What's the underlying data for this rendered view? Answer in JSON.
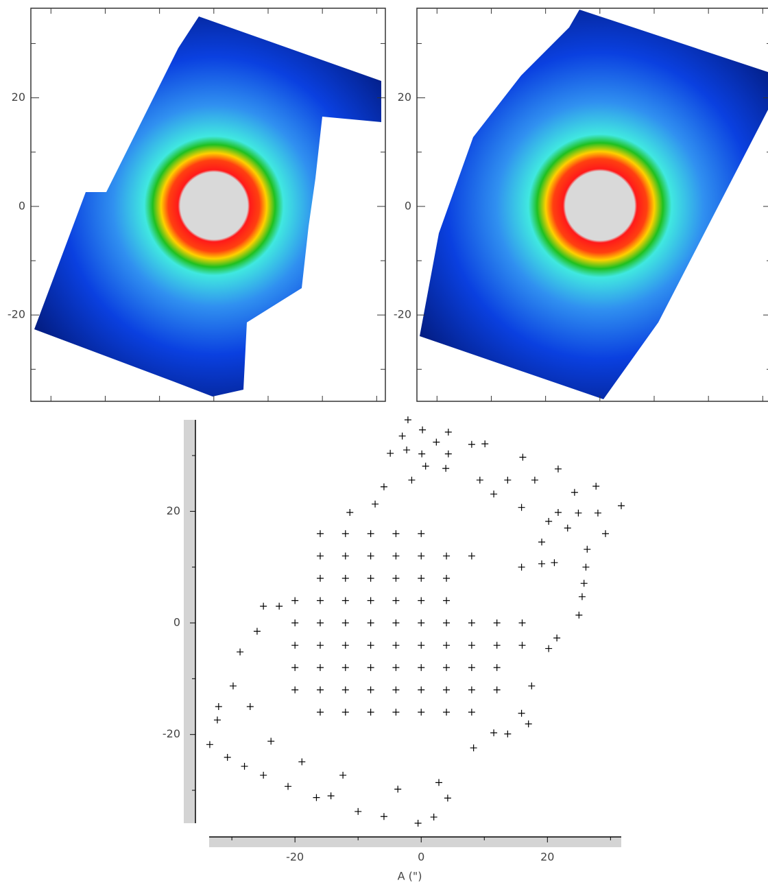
{
  "chart_data": [
    {
      "type": "image",
      "xlim": [
        -33.7,
        31.6
      ],
      "xticks": [
        -30,
        -20,
        -10,
        0,
        10,
        20,
        30
      ],
      "ylim": [
        -35.9,
        36.5
      ],
      "yticks": [
        -20,
        0,
        20
      ],
      "yminorticks": [
        -30,
        -10,
        10,
        30
      ]
    },
    {
      "type": "image",
      "xlim": [
        -33.7,
        31.6
      ],
      "xticks": [
        -30,
        -20,
        -10,
        0,
        10,
        20,
        30
      ],
      "ylim": [
        -35.9,
        36.5
      ],
      "yticks": [
        -20,
        0,
        20
      ],
      "yminorticks": [
        -30,
        -10,
        10,
        30
      ]
    },
    {
      "type": "scatter",
      "xlabel": "A (\")",
      "xlim": [
        -33.6,
        31.7
      ],
      "xticks": [
        -20,
        0,
        20
      ],
      "xminorticks": [
        -30,
        -10,
        10,
        30
      ],
      "ylim": [
        -35.9,
        36.4
      ],
      "yticks": [
        -20,
        0,
        20
      ],
      "yminorticks": [
        -30,
        -10,
        10,
        30
      ],
      "color": "#000000",
      "points": [
        [
          -2.1,
          36.4
        ],
        [
          -3.0,
          33.5
        ],
        [
          0.2,
          34.6
        ],
        [
          2.4,
          32.4
        ],
        [
          4.3,
          34.2
        ],
        [
          -4.9,
          30.4
        ],
        [
          -2.3,
          31.0
        ],
        [
          0.1,
          30.3
        ],
        [
          4.3,
          30.3
        ],
        [
          8.0,
          32.0
        ],
        [
          10.1,
          32.1
        ],
        [
          16.1,
          29.7
        ],
        [
          21.7,
          27.6
        ],
        [
          27.7,
          24.5
        ],
        [
          31.7,
          21.0
        ],
        [
          29.2,
          16.0
        ],
        [
          24.3,
          23.4
        ],
        [
          28.0,
          19.7
        ],
        [
          24.9,
          19.7
        ],
        [
          21.7,
          19.8
        ],
        [
          26.3,
          13.2
        ],
        [
          26.1,
          10.0
        ],
        [
          25.8,
          7.1
        ],
        [
          25.5,
          4.7
        ],
        [
          25.0,
          1.4
        ],
        [
          -33.5,
          -21.8
        ],
        [
          -32.3,
          -17.4
        ],
        [
          -32.1,
          -15.0
        ],
        [
          -30.7,
          -24.1
        ],
        [
          -28.0,
          -25.7
        ],
        [
          -25.0,
          -27.3
        ],
        [
          -25.0,
          3.0
        ],
        [
          -22.5,
          3.0
        ],
        [
          -28.7,
          -5.2
        ],
        [
          -21.1,
          -29.3
        ],
        [
          -16.6,
          -31.3
        ],
        [
          -14.3,
          -31.0
        ],
        [
          -10.0,
          -33.8
        ],
        [
          -5.9,
          -34.7
        ],
        [
          -0.5,
          -35.9
        ],
        [
          2.0,
          -34.8
        ],
        [
          4.2,
          -31.4
        ],
        [
          11.5,
          -19.7
        ],
        [
          13.7,
          -19.9
        ],
        [
          17.0,
          -18.1
        ],
        [
          -11.3,
          19.8
        ],
        [
          -7.3,
          21.3
        ],
        [
          3.9,
          27.7
        ],
        [
          15.9,
          10.0
        ],
        [
          19.1,
          10.6
        ],
        [
          21.1,
          10.8
        ],
        [
          21.5,
          -2.7
        ],
        [
          20.2,
          -4.6
        ],
        [
          17.5,
          -11.3
        ],
        [
          15.9,
          -16.2
        ],
        [
          -26.0,
          -1.5
        ],
        [
          -29.8,
          -11.3
        ],
        [
          -27.1,
          -15.0
        ],
        [
          -23.8,
          -21.2
        ],
        [
          -18.9,
          -24.9
        ],
        [
          -12.4,
          -27.3
        ],
        [
          -3.7,
          -29.8
        ],
        [
          2.8,
          -28.6
        ],
        [
          8.3,
          -22.4
        ],
        [
          9.3,
          25.6
        ],
        [
          13.7,
          25.6
        ],
        [
          18.0,
          25.6
        ],
        [
          11.5,
          23.1
        ],
        [
          15.9,
          20.7
        ],
        [
          20.2,
          18.2
        ],
        [
          19.1,
          14.5
        ],
        [
          23.2,
          17.0
        ],
        [
          -1.5,
          25.6
        ],
        [
          -5.9,
          24.4
        ],
        [
          0.7,
          28.1
        ],
        [
          -16,
          16
        ],
        [
          -12,
          16
        ],
        [
          -8,
          16
        ],
        [
          -4,
          16
        ],
        [
          0,
          16
        ],
        [
          -16,
          12
        ],
        [
          -12,
          12
        ],
        [
          -8,
          12
        ],
        [
          -4,
          12
        ],
        [
          0,
          12
        ],
        [
          4,
          12
        ],
        [
          8,
          12
        ],
        [
          -16,
          8
        ],
        [
          -12,
          8
        ],
        [
          -8,
          8
        ],
        [
          -4,
          8
        ],
        [
          0,
          8
        ],
        [
          4,
          8
        ],
        [
          -20,
          4
        ],
        [
          -16,
          4
        ],
        [
          -12,
          4
        ],
        [
          -8,
          4
        ],
        [
          -4,
          4
        ],
        [
          0,
          4
        ],
        [
          4,
          4
        ],
        [
          -20,
          0
        ],
        [
          -16,
          0
        ],
        [
          -12,
          0
        ],
        [
          -8,
          0
        ],
        [
          -4,
          0
        ],
        [
          0,
          0
        ],
        [
          4,
          0
        ],
        [
          8,
          0
        ],
        [
          12,
          0
        ],
        [
          16,
          0
        ],
        [
          -20,
          -4
        ],
        [
          -16,
          -4
        ],
        [
          -12,
          -4
        ],
        [
          -8,
          -4
        ],
        [
          -4,
          -4
        ],
        [
          0,
          -4
        ],
        [
          4,
          -4
        ],
        [
          8,
          -4
        ],
        [
          12,
          -4
        ],
        [
          16,
          -4
        ],
        [
          -20,
          -8
        ],
        [
          -16,
          -8
        ],
        [
          -12,
          -8
        ],
        [
          -8,
          -8
        ],
        [
          -4,
          -8
        ],
        [
          0,
          -8
        ],
        [
          4,
          -8
        ],
        [
          8,
          -8
        ],
        [
          12,
          -8
        ],
        [
          -20,
          -12
        ],
        [
          -16,
          -12
        ],
        [
          -12,
          -12
        ],
        [
          -8,
          -12
        ],
        [
          -4,
          -12
        ],
        [
          0,
          -12
        ],
        [
          4,
          -12
        ],
        [
          8,
          -12
        ],
        [
          12,
          -12
        ],
        [
          -16,
          -16
        ],
        [
          -12,
          -16
        ],
        [
          -8,
          -16
        ],
        [
          -4,
          -16
        ],
        [
          0,
          -16
        ],
        [
          4,
          -16
        ],
        [
          8,
          -16
        ]
      ]
    }
  ]
}
